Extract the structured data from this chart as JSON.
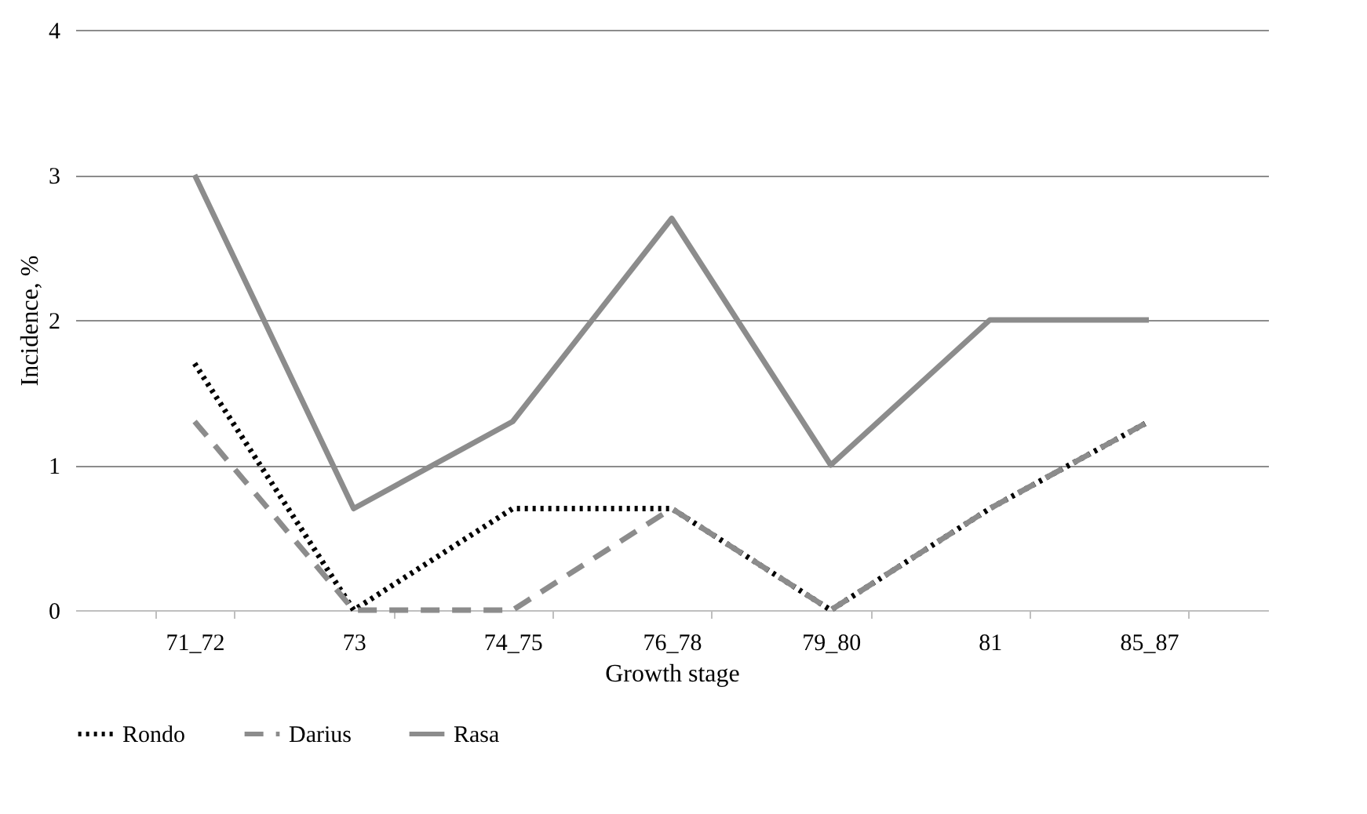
{
  "chart_data": {
    "type": "line",
    "xlabel": "Growth stage",
    "ylabel": "Incidence, %",
    "categories": [
      "71_72",
      "73",
      "74_75",
      "76_78",
      "79_80",
      "81",
      "85_87"
    ],
    "series": [
      {
        "name": "Rondo",
        "color": "#000000",
        "line_style": "dotted",
        "values": [
          1.7,
          0,
          0.7,
          0.7,
          0,
          0.7,
          1.3
        ]
      },
      {
        "name": "Darius",
        "color": "#8c8c8c",
        "line_style": "dashed",
        "values": [
          1.3,
          0,
          0,
          0.7,
          0,
          0.7,
          1.3
        ]
      },
      {
        "name": "Rasa",
        "color": "#8c8c8c",
        "line_style": "solid",
        "values": [
          3,
          0.7,
          1.3,
          2.7,
          1,
          2,
          2
        ]
      }
    ],
    "ylim": [
      0,
      4
    ],
    "yticks": [
      0,
      1,
      2,
      3,
      4
    ],
    "grid": "y",
    "legend": "bottom"
  }
}
